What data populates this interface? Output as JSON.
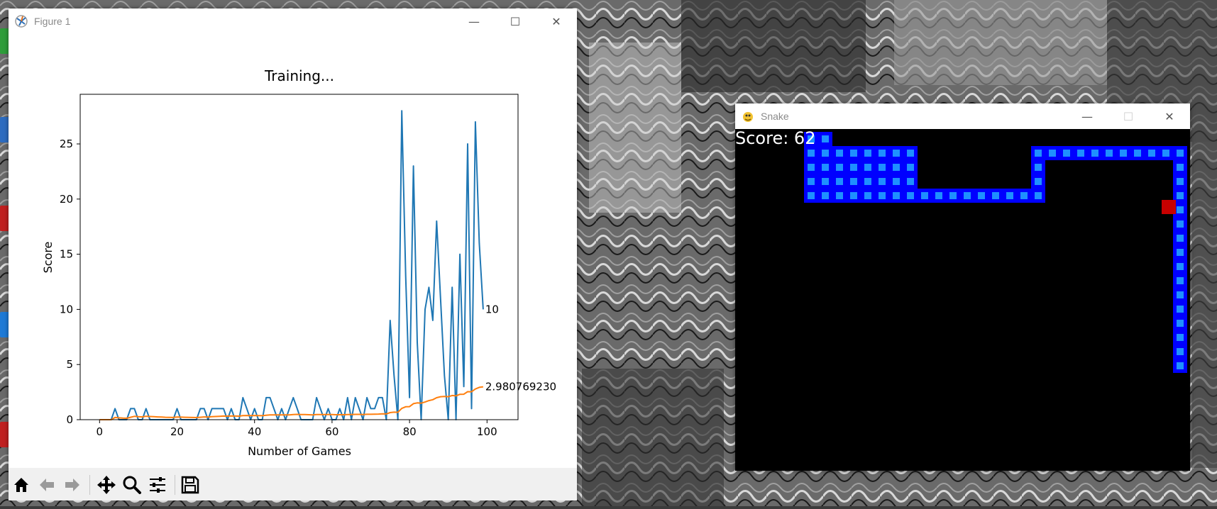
{
  "figure_window": {
    "title": "Figure 1",
    "controls": {
      "minimize": "—",
      "maximize": "☐",
      "close": "✕"
    },
    "toolbar": {
      "buttons": [
        "home-icon",
        "back-icon",
        "forward-icon",
        "pan-icon",
        "zoom-icon",
        "configure-subplots-icon",
        "save-icon"
      ]
    }
  },
  "chart_data": {
    "type": "line",
    "title": "Training...",
    "xlabel": "Number of Games",
    "ylabel": "Score",
    "xlim": [
      -5,
      108
    ],
    "ylim": [
      0,
      29.5
    ],
    "xticks": [
      0,
      20,
      40,
      60,
      80,
      100
    ],
    "yticks": [
      0,
      5,
      10,
      15,
      20,
      25
    ],
    "grid": false,
    "series": [
      {
        "color": "#1f77b4",
        "values": [
          0,
          0,
          0,
          0,
          1,
          0,
          0,
          0,
          1,
          1,
          0,
          0,
          1,
          0,
          0,
          0,
          0,
          0,
          0,
          0,
          1,
          0,
          0,
          0,
          0,
          0,
          1,
          1,
          0,
          1,
          1,
          1,
          1,
          0,
          1,
          0,
          0,
          2,
          1,
          0,
          1,
          0,
          0,
          2,
          2,
          1,
          0,
          1,
          0,
          1,
          2,
          1,
          0,
          0,
          0,
          0,
          2,
          1,
          0,
          1,
          0,
          0,
          1,
          0,
          2,
          0,
          2,
          1,
          0,
          2,
          1,
          1,
          2,
          2,
          0,
          9,
          4,
          0,
          28,
          13,
          2,
          23,
          7,
          0,
          10,
          12,
          9,
          18,
          11,
          4,
          0,
          12,
          0,
          15,
          3,
          25,
          1,
          27,
          16,
          10
        ],
        "end_label": "10"
      },
      {
        "color": "#ff7f0e",
        "values": [
          0,
          0,
          0,
          0,
          0.2,
          0.17,
          0.14,
          0.13,
          0.22,
          0.3,
          0.27,
          0.25,
          0.31,
          0.29,
          0.27,
          0.25,
          0.24,
          0.22,
          0.21,
          0.2,
          0.24,
          0.23,
          0.22,
          0.21,
          0.2,
          0.19,
          0.22,
          0.25,
          0.24,
          0.27,
          0.29,
          0.31,
          0.33,
          0.32,
          0.34,
          0.33,
          0.32,
          0.37,
          0.38,
          0.37,
          0.38,
          0.37,
          0.36,
          0.4,
          0.43,
          0.44,
          0.43,
          0.44,
          0.43,
          0.44,
          0.47,
          0.48,
          0.47,
          0.46,
          0.45,
          0.44,
          0.47,
          0.47,
          0.46,
          0.47,
          0.46,
          0.45,
          0.45,
          0.45,
          0.47,
          0.46,
          0.48,
          0.48,
          0.47,
          0.49,
          0.49,
          0.5,
          0.51,
          0.53,
          0.52,
          0.64,
          0.68,
          0.67,
          1.02,
          1.17,
          1.18,
          1.45,
          1.52,
          1.5,
          1.6,
          1.73,
          1.81,
          1.99,
          2.08,
          2.1,
          2.08,
          2.19,
          2.16,
          2.3,
          2.31,
          2.54,
          2.53,
          2.78,
          2.93,
          2.98
        ],
        "end_label": "2.980769230"
      }
    ]
  },
  "snake_window": {
    "title": "Snake",
    "controls": {
      "minimize": "—",
      "maximize": "☐",
      "close": "✕"
    },
    "score_label": "Score: 62"
  }
}
